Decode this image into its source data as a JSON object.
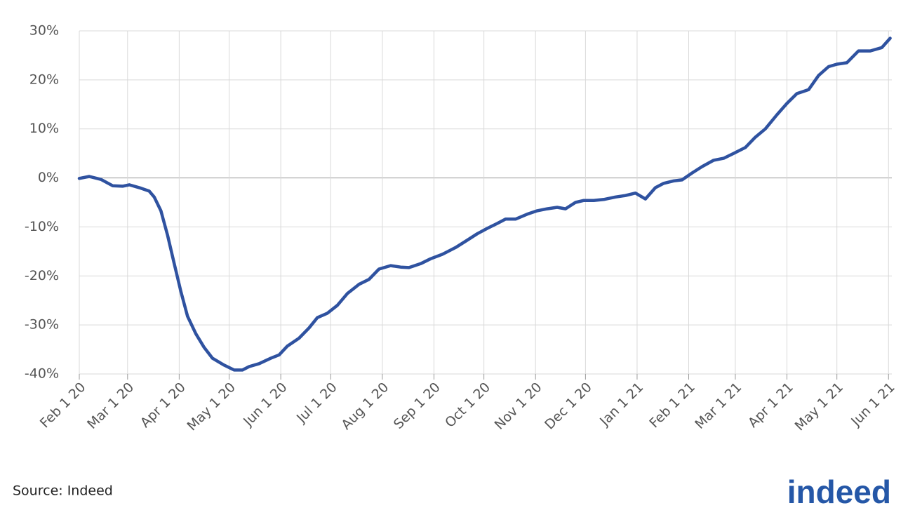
{
  "chart_data": {
    "type": "line",
    "x": [
      "2020-02-01",
      "2020-02-07",
      "2020-02-14",
      "2020-02-21",
      "2020-02-27",
      "2020-03-02",
      "2020-03-09",
      "2020-03-14",
      "2020-03-17",
      "2020-03-21",
      "2020-03-25",
      "2020-03-29",
      "2020-04-02",
      "2020-04-06",
      "2020-04-11",
      "2020-04-16",
      "2020-04-21",
      "2020-04-28",
      "2020-05-04",
      "2020-05-09",
      "2020-05-13",
      "2020-05-19",
      "2020-05-26",
      "2020-05-31",
      "2020-06-05",
      "2020-06-12",
      "2020-06-18",
      "2020-06-23",
      "2020-06-29",
      "2020-07-05",
      "2020-07-11",
      "2020-07-18",
      "2020-07-24",
      "2020-07-30",
      "2020-08-06",
      "2020-08-12",
      "2020-08-17",
      "2020-08-24",
      "2020-08-30",
      "2020-09-06",
      "2020-09-14",
      "2020-09-21",
      "2020-09-27",
      "2020-10-03",
      "2020-10-09",
      "2020-10-14",
      "2020-10-20",
      "2020-10-27",
      "2020-11-02",
      "2020-11-08",
      "2020-11-14",
      "2020-11-19",
      "2020-11-25",
      "2020-11-30",
      "2020-12-06",
      "2020-12-12",
      "2020-12-19",
      "2020-12-25",
      "2020-12-31",
      "2021-01-06",
      "2021-01-12",
      "2021-01-17",
      "2021-01-23",
      "2021-01-28",
      "2021-02-03",
      "2021-02-09",
      "2021-02-16",
      "2021-02-22",
      "2021-02-28",
      "2021-03-07",
      "2021-03-13",
      "2021-03-19",
      "2021-03-26",
      "2021-04-01",
      "2021-04-07",
      "2021-04-14",
      "2021-04-20",
      "2021-04-26",
      "2021-05-01",
      "2021-05-07",
      "2021-05-14",
      "2021-05-21",
      "2021-05-28",
      "2021-06-02"
    ],
    "series": [
      {
        "color": "#2f52a0",
        "values": [
          -0.1,
          0.3,
          -0.3,
          -1.6,
          -1.7,
          -1.4,
          -2.1,
          -2.7,
          -3.9,
          -6.7,
          -11.7,
          -17.5,
          -23.2,
          -28.2,
          -31.8,
          -34.6,
          -36.8,
          -38.2,
          -39.2,
          -39.2,
          -38.5,
          -37.9,
          -36.8,
          -36.1,
          -34.3,
          -32.7,
          -30.6,
          -28.5,
          -27.6,
          -26.0,
          -23.6,
          -21.7,
          -20.7,
          -18.6,
          -17.9,
          -18.2,
          -18.3,
          -17.5,
          -16.5,
          -15.6,
          -14.2,
          -12.7,
          -11.4,
          -10.3,
          -9.3,
          -8.4,
          -8.4,
          -7.4,
          -6.7,
          -6.3,
          -6.0,
          -6.3,
          -5.0,
          -4.6,
          -4.6,
          -4.4,
          -3.9,
          -3.6,
          -3.1,
          -4.3,
          -2.0,
          -1.1,
          -0.6,
          -0.4,
          1.0,
          2.3,
          3.6,
          4.0,
          5.0,
          6.2,
          8.3,
          10.0,
          12.9,
          15.2,
          17.2,
          18.0,
          20.9,
          22.7,
          23.2,
          23.5,
          25.9,
          25.9,
          26.6,
          28.5
        ]
      }
    ],
    "xlim": [
      "2020-02-01",
      "2021-06-03"
    ],
    "xticks": [
      {
        "value": "2020-02-01",
        "label": "Feb 1 20"
      },
      {
        "value": "2020-03-01",
        "label": "Mar 1 20"
      },
      {
        "value": "2020-04-01",
        "label": "Apr 1 20"
      },
      {
        "value": "2020-05-01",
        "label": "May 1 20"
      },
      {
        "value": "2020-06-01",
        "label": "Jun 1 20"
      },
      {
        "value": "2020-07-01",
        "label": "Jul 1 20"
      },
      {
        "value": "2020-08-01",
        "label": "Aug 1 20"
      },
      {
        "value": "2020-09-01",
        "label": "Sep 1 20"
      },
      {
        "value": "2020-10-01",
        "label": "Oct 1 20"
      },
      {
        "value": "2020-11-01",
        "label": "Nov 1 20"
      },
      {
        "value": "2020-12-01",
        "label": "Dec 1 20"
      },
      {
        "value": "2021-01-01",
        "label": "Jan 1 21"
      },
      {
        "value": "2021-02-01",
        "label": "Feb 1 21"
      },
      {
        "value": "2021-03-01",
        "label": "Mar 1 21"
      },
      {
        "value": "2021-04-01",
        "label": "Apr 1 21"
      },
      {
        "value": "2021-05-01",
        "label": "May 1 21"
      },
      {
        "value": "2021-06-01",
        "label": "Jun 1 21"
      }
    ],
    "ylim": [
      -40,
      30
    ],
    "yticks": [
      {
        "value": -40,
        "label": "-40%"
      },
      {
        "value": -30,
        "label": "-30%"
      },
      {
        "value": -20,
        "label": "-20%"
      },
      {
        "value": -10,
        "label": "-10%"
      },
      {
        "value": 0,
        "label": "0%"
      },
      {
        "value": 10,
        "label": "10%"
      },
      {
        "value": 20,
        "label": "20%"
      },
      {
        "value": 30,
        "label": "30%"
      }
    ],
    "grid": true,
    "source": "Source: Indeed",
    "logo": "indeed"
  }
}
